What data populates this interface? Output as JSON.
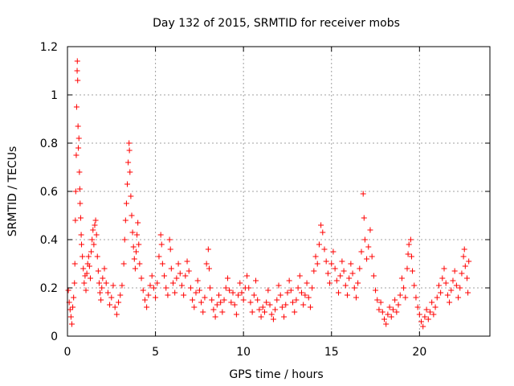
{
  "chart_data": {
    "type": "scatter",
    "title": "Day 132 of 2015, SRMTID for receiver mobs",
    "xlabel": "GPS time / hours",
    "ylabel": "SRMTID / TECUs",
    "xlim": [
      0,
      24
    ],
    "ylim": [
      0,
      1.2
    ],
    "xticks": [
      0,
      5,
      10,
      15,
      20
    ],
    "xtick_labels": [
      "0",
      "5",
      "10",
      "15",
      "20"
    ],
    "yticks": [
      0,
      0.2,
      0.4,
      0.6,
      0.8,
      1.0,
      1.2
    ],
    "ytick_labels": [
      "0",
      "0.2",
      "0.4",
      "0.6",
      "0.8",
      "1",
      "1.2"
    ],
    "grid": true,
    "marker": "+",
    "color": "#ff0000",
    "series": [
      {
        "name": "mobs",
        "points": [
          [
            0.05,
            0.19
          ],
          [
            0.1,
            0.14
          ],
          [
            0.15,
            0.11
          ],
          [
            0.2,
            0.08
          ],
          [
            0.25,
            0.05
          ],
          [
            0.3,
            0.12
          ],
          [
            0.35,
            0.16
          ],
          [
            0.4,
            0.22
          ],
          [
            0.42,
            0.3
          ],
          [
            0.45,
            0.48
          ],
          [
            0.47,
            0.6
          ],
          [
            0.5,
            0.75
          ],
          [
            0.52,
            0.95
          ],
          [
            0.55,
            1.1
          ],
          [
            0.56,
            1.14
          ],
          [
            0.58,
            1.06
          ],
          [
            0.6,
            0.87
          ],
          [
            0.62,
            0.78
          ],
          [
            0.65,
            0.82
          ],
          [
            0.68,
            0.68
          ],
          [
            0.7,
            0.61
          ],
          [
            0.72,
            0.55
          ],
          [
            0.75,
            0.49
          ],
          [
            0.78,
            0.42
          ],
          [
            0.8,
            0.38
          ],
          [
            0.85,
            0.33
          ],
          [
            0.9,
            0.28
          ],
          [
            0.95,
            0.22
          ],
          [
            1.0,
            0.25
          ],
          [
            1.05,
            0.19
          ],
          [
            1.1,
            0.26
          ],
          [
            1.15,
            0.3
          ],
          [
            1.2,
            0.33
          ],
          [
            1.25,
            0.29
          ],
          [
            1.3,
            0.24
          ],
          [
            1.35,
            0.35
          ],
          [
            1.4,
            0.4
          ],
          [
            1.45,
            0.44
          ],
          [
            1.5,
            0.38
          ],
          [
            1.55,
            0.46
          ],
          [
            1.6,
            0.48
          ],
          [
            1.65,
            0.42
          ],
          [
            1.7,
            0.33
          ],
          [
            1.75,
            0.27
          ],
          [
            1.8,
            0.22
          ],
          [
            1.85,
            0.18
          ],
          [
            1.9,
            0.15
          ],
          [
            1.95,
            0.2
          ],
          [
            2.0,
            0.24
          ],
          [
            2.1,
            0.28
          ],
          [
            2.2,
            0.22
          ],
          [
            2.3,
            0.18
          ],
          [
            2.4,
            0.13
          ],
          [
            2.5,
            0.16
          ],
          [
            2.6,
            0.21
          ],
          [
            2.7,
            0.12
          ],
          [
            2.8,
            0.09
          ],
          [
            2.9,
            0.14
          ],
          [
            3.0,
            0.17
          ],
          [
            3.1,
            0.21
          ],
          [
            3.2,
            0.3
          ],
          [
            3.25,
            0.4
          ],
          [
            3.3,
            0.48
          ],
          [
            3.35,
            0.55
          ],
          [
            3.4,
            0.63
          ],
          [
            3.45,
            0.72
          ],
          [
            3.5,
            0.8
          ],
          [
            3.52,
            0.77
          ],
          [
            3.55,
            0.68
          ],
          [
            3.6,
            0.58
          ],
          [
            3.65,
            0.5
          ],
          [
            3.7,
            0.43
          ],
          [
            3.75,
            0.37
          ],
          [
            3.8,
            0.32
          ],
          [
            3.85,
            0.28
          ],
          [
            3.9,
            0.35
          ],
          [
            3.95,
            0.42
          ],
          [
            4.0,
            0.47
          ],
          [
            4.05,
            0.38
          ],
          [
            4.1,
            0.3
          ],
          [
            4.2,
            0.24
          ],
          [
            4.3,
            0.19
          ],
          [
            4.4,
            0.15
          ],
          [
            4.5,
            0.12
          ],
          [
            4.6,
            0.17
          ],
          [
            4.7,
            0.21
          ],
          [
            4.8,
            0.25
          ],
          [
            4.9,
            0.2
          ],
          [
            5.0,
            0.16
          ],
          [
            5.1,
            0.22
          ],
          [
            5.2,
            0.33
          ],
          [
            5.3,
            0.42
          ],
          [
            5.35,
            0.38
          ],
          [
            5.4,
            0.3
          ],
          [
            5.5,
            0.25
          ],
          [
            5.6,
            0.2
          ],
          [
            5.7,
            0.17
          ],
          [
            5.8,
            0.4
          ],
          [
            5.85,
            0.36
          ],
          [
            5.9,
            0.28
          ],
          [
            6.0,
            0.22
          ],
          [
            6.1,
            0.18
          ],
          [
            6.2,
            0.24
          ],
          [
            6.3,
            0.3
          ],
          [
            6.4,
            0.26
          ],
          [
            6.5,
            0.21
          ],
          [
            6.6,
            0.17
          ],
          [
            6.7,
            0.25
          ],
          [
            6.8,
            0.31
          ],
          [
            6.9,
            0.27
          ],
          [
            7.0,
            0.2
          ],
          [
            7.1,
            0.15
          ],
          [
            7.2,
            0.12
          ],
          [
            7.3,
            0.18
          ],
          [
            7.4,
            0.23
          ],
          [
            7.5,
            0.19
          ],
          [
            7.6,
            0.14
          ],
          [
            7.7,
            0.1
          ],
          [
            7.8,
            0.16
          ],
          [
            7.9,
            0.3
          ],
          [
            8.0,
            0.36
          ],
          [
            8.05,
            0.28
          ],
          [
            8.1,
            0.2
          ],
          [
            8.2,
            0.15
          ],
          [
            8.3,
            0.11
          ],
          [
            8.4,
            0.08
          ],
          [
            8.5,
            0.13
          ],
          [
            8.6,
            0.17
          ],
          [
            8.7,
            0.14
          ],
          [
            8.8,
            0.1
          ],
          [
            8.9,
            0.15
          ],
          [
            9.0,
            0.2
          ],
          [
            9.1,
            0.24
          ],
          [
            9.2,
            0.19
          ],
          [
            9.3,
            0.14
          ],
          [
            9.4,
            0.18
          ],
          [
            9.5,
            0.13
          ],
          [
            9.6,
            0.09
          ],
          [
            9.7,
            0.17
          ],
          [
            9.8,
            0.22
          ],
          [
            9.9,
            0.18
          ],
          [
            10.0,
            0.15
          ],
          [
            10.1,
            0.2
          ],
          [
            10.2,
            0.25
          ],
          [
            10.3,
            0.2
          ],
          [
            10.4,
            0.14
          ],
          [
            10.5,
            0.1
          ],
          [
            10.6,
            0.17
          ],
          [
            10.7,
            0.23
          ],
          [
            10.8,
            0.15
          ],
          [
            10.9,
            0.11
          ],
          [
            11.0,
            0.08
          ],
          [
            11.1,
            0.12
          ],
          [
            11.2,
            0.1
          ],
          [
            11.3,
            0.14
          ],
          [
            11.4,
            0.19
          ],
          [
            11.5,
            0.13
          ],
          [
            11.6,
            0.09
          ],
          [
            11.7,
            0.07
          ],
          [
            11.8,
            0.11
          ],
          [
            11.9,
            0.15
          ],
          [
            12.0,
            0.21
          ],
          [
            12.1,
            0.17
          ],
          [
            12.2,
            0.12
          ],
          [
            12.3,
            0.08
          ],
          [
            12.4,
            0.13
          ],
          [
            12.5,
            0.18
          ],
          [
            12.6,
            0.23
          ],
          [
            12.7,
            0.19
          ],
          [
            12.8,
            0.14
          ],
          [
            12.9,
            0.1
          ],
          [
            13.0,
            0.15
          ],
          [
            13.1,
            0.2
          ],
          [
            13.2,
            0.25
          ],
          [
            13.3,
            0.18
          ],
          [
            13.4,
            0.13
          ],
          [
            13.5,
            0.17
          ],
          [
            13.6,
            0.22
          ],
          [
            13.7,
            0.16
          ],
          [
            13.8,
            0.12
          ],
          [
            13.9,
            0.2
          ],
          [
            14.0,
            0.27
          ],
          [
            14.1,
            0.33
          ],
          [
            14.2,
            0.3
          ],
          [
            14.3,
            0.38
          ],
          [
            14.4,
            0.46
          ],
          [
            14.5,
            0.43
          ],
          [
            14.6,
            0.36
          ],
          [
            14.7,
            0.31
          ],
          [
            14.8,
            0.26
          ],
          [
            14.9,
            0.22
          ],
          [
            15.0,
            0.3
          ],
          [
            15.1,
            0.35
          ],
          [
            15.2,
            0.28
          ],
          [
            15.3,
            0.23
          ],
          [
            15.4,
            0.18
          ],
          [
            15.5,
            0.25
          ],
          [
            15.6,
            0.31
          ],
          [
            15.7,
            0.27
          ],
          [
            15.8,
            0.21
          ],
          [
            15.9,
            0.17
          ],
          [
            16.0,
            0.24
          ],
          [
            16.1,
            0.3
          ],
          [
            16.2,
            0.26
          ],
          [
            16.3,
            0.2
          ],
          [
            16.4,
            0.16
          ],
          [
            16.5,
            0.22
          ],
          [
            16.6,
            0.28
          ],
          [
            16.7,
            0.35
          ],
          [
            16.8,
            0.59
          ],
          [
            16.85,
            0.49
          ],
          [
            16.9,
            0.4
          ],
          [
            17.0,
            0.32
          ],
          [
            17.1,
            0.37
          ],
          [
            17.2,
            0.44
          ],
          [
            17.3,
            0.33
          ],
          [
            17.4,
            0.25
          ],
          [
            17.5,
            0.19
          ],
          [
            17.6,
            0.15
          ],
          [
            17.7,
            0.11
          ],
          [
            17.8,
            0.14
          ],
          [
            17.9,
            0.1
          ],
          [
            18.0,
            0.07
          ],
          [
            18.1,
            0.05
          ],
          [
            18.2,
            0.09
          ],
          [
            18.3,
            0.12
          ],
          [
            18.4,
            0.08
          ],
          [
            18.5,
            0.11
          ],
          [
            18.6,
            0.15
          ],
          [
            18.7,
            0.1
          ],
          [
            18.8,
            0.13
          ],
          [
            18.9,
            0.17
          ],
          [
            19.0,
            0.24
          ],
          [
            19.1,
            0.2
          ],
          [
            19.2,
            0.16
          ],
          [
            19.3,
            0.28
          ],
          [
            19.35,
            0.34
          ],
          [
            19.4,
            0.38
          ],
          [
            19.5,
            0.4
          ],
          [
            19.55,
            0.33
          ],
          [
            19.6,
            0.27
          ],
          [
            19.7,
            0.21
          ],
          [
            19.8,
            0.16
          ],
          [
            19.9,
            0.12
          ],
          [
            20.0,
            0.09
          ],
          [
            20.1,
            0.06
          ],
          [
            20.2,
            0.04
          ],
          [
            20.3,
            0.08
          ],
          [
            20.4,
            0.11
          ],
          [
            20.5,
            0.07
          ],
          [
            20.6,
            0.1
          ],
          [
            20.7,
            0.14
          ],
          [
            20.8,
            0.09
          ],
          [
            20.9,
            0.12
          ],
          [
            21.0,
            0.16
          ],
          [
            21.1,
            0.21
          ],
          [
            21.2,
            0.18
          ],
          [
            21.3,
            0.24
          ],
          [
            21.4,
            0.28
          ],
          [
            21.5,
            0.22
          ],
          [
            21.6,
            0.17
          ],
          [
            21.7,
            0.14
          ],
          [
            21.8,
            0.19
          ],
          [
            21.9,
            0.23
          ],
          [
            22.0,
            0.27
          ],
          [
            22.1,
            0.21
          ],
          [
            22.2,
            0.16
          ],
          [
            22.3,
            0.2
          ],
          [
            22.4,
            0.26
          ],
          [
            22.5,
            0.33
          ],
          [
            22.55,
            0.36
          ],
          [
            22.6,
            0.29
          ],
          [
            22.7,
            0.24
          ],
          [
            22.75,
            0.18
          ],
          [
            22.8,
            0.31
          ]
        ]
      }
    ]
  }
}
